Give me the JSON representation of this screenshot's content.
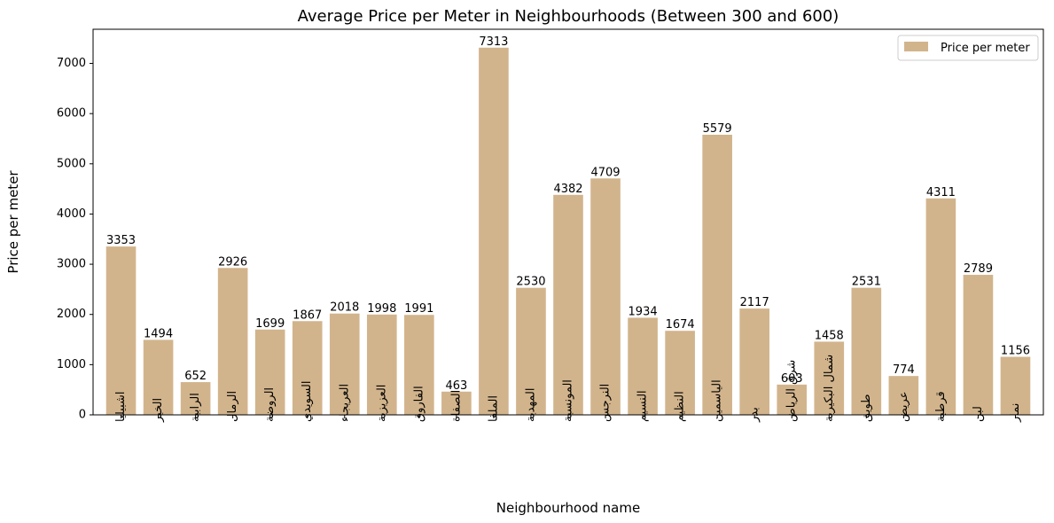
{
  "chart_data": {
    "type": "bar",
    "title": "Average Price per Meter in Neighbourhoods (Between 300 and 600)",
    "xlabel": "Neighbourhood name",
    "ylabel": "Price per meter",
    "ylim": [
      0,
      7680
    ],
    "yticks": [
      0,
      1000,
      2000,
      3000,
      4000,
      5000,
      6000,
      7000
    ],
    "grid": false,
    "legend_position": "top-right",
    "bar_color": "#d2b48c",
    "series": [
      {
        "name": "Price per meter",
        "values": [
          3353,
          1494,
          652,
          2926,
          1699,
          1867,
          2018,
          1998,
          1991,
          463,
          7313,
          2530,
          4382,
          4709,
          1934,
          1674,
          5579,
          2117,
          603,
          1458,
          2531,
          774,
          4311,
          2789,
          1156
        ]
      }
    ],
    "categories": [
      "اشبيليا",
      "الخير",
      "الرابية",
      "الرمال",
      "الروضة",
      "السويدي",
      "العريجاء",
      "العزيزية",
      "الفاروق",
      "الصفاة",
      "الملقا",
      "المهدية",
      "المونسية",
      "النرجس",
      "النسيم",
      "النظيم",
      "الياسمين",
      "بدر",
      "شرق الرياض",
      "شمال البكيرية",
      "طويق",
      "عريض",
      "قرطبة",
      "لبن",
      "نمار"
    ]
  }
}
